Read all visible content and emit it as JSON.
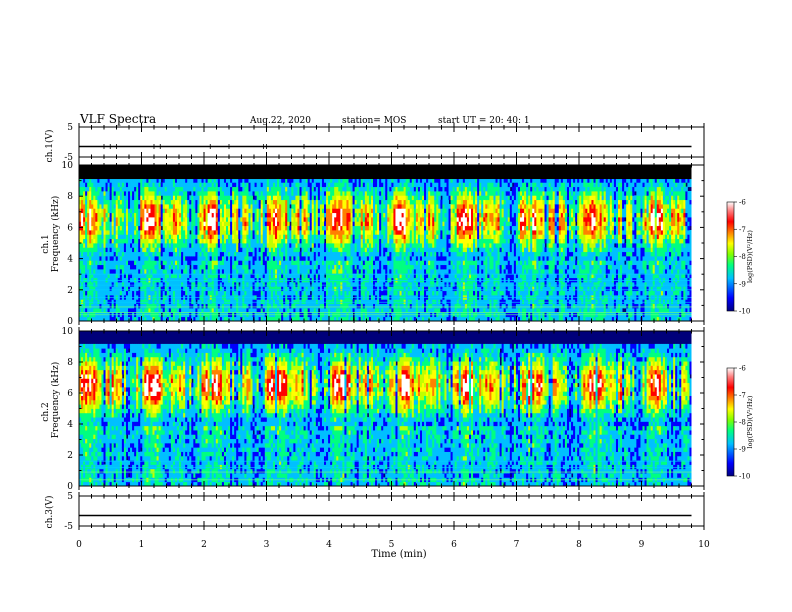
{
  "header": {
    "title": "VLF Spectra",
    "date": "Aug.22, 2020",
    "station": "station= MOS",
    "start_ut": "start  UT =   20: 40: 1"
  },
  "colorbar": {
    "label": "log(PSD)(V²/Hz)",
    "ticks": [
      "-6",
      "-7",
      "-8",
      "-9",
      "-10"
    ]
  },
  "chart_data": [
    {
      "type": "line",
      "name": "ch1-waveform",
      "ylabel": "ch.1(V)",
      "yticks": [
        "5",
        "-5"
      ],
      "ylim": [
        -5,
        5
      ],
      "baseline": -1.5,
      "x_range": [
        0,
        9.8
      ],
      "spikes_at_min": [
        0.4,
        0.5,
        0.6,
        1.2,
        1.3,
        2.1,
        2.4,
        2.95,
        3.0,
        3.6,
        4.2,
        5.1
      ]
    },
    {
      "type": "heatmap",
      "name": "ch1-spectrogram",
      "ylabel": "ch.1\nFrequency  (kHz)",
      "yticks": [
        "0",
        "2",
        "4",
        "6",
        "8",
        "10"
      ],
      "ylim": [
        0,
        10
      ],
      "x_range": [
        0,
        9.8
      ],
      "dominant_band_khz": [
        5,
        8
      ],
      "hum_lines_khz": [
        0.4,
        0.55,
        0.9,
        1.2,
        1.5,
        2.0,
        2.3,
        2.6,
        3.0
      ],
      "colorscale": [
        "#000080",
        "#0000ff",
        "#00c0ff",
        "#00ff80",
        "#c0ff00",
        "#ffff00",
        "#ff8000",
        "#ff0000",
        "#ffffff"
      ]
    },
    {
      "type": "heatmap",
      "name": "ch2-spectrogram",
      "ylabel": "ch.2\nFrequency  (kHz)",
      "yticks": [
        "0",
        "2",
        "4",
        "6",
        "8",
        "10"
      ],
      "ylim": [
        0,
        10
      ],
      "x_range": [
        0,
        9.8
      ],
      "dominant_band_khz": [
        5,
        8
      ],
      "hum_lines_khz": [
        0.4,
        0.9,
        1.2,
        1.6
      ],
      "colorscale": [
        "#000080",
        "#0000ff",
        "#00c0ff",
        "#00ff80",
        "#c0ff00",
        "#ffff00",
        "#ff8000",
        "#ff0000",
        "#ffffff"
      ]
    },
    {
      "type": "line",
      "name": "ch3-waveform",
      "ylabel": "ch.3(V)",
      "yticks": [
        "5",
        "-5"
      ],
      "ylim": [
        -5,
        5
      ],
      "baseline": -1.5,
      "x_range": [
        0,
        9.8
      ]
    }
  ],
  "xaxis": {
    "label": "Time  (min)",
    "ticks": [
      "0",
      "1",
      "2",
      "3",
      "4",
      "5",
      "6",
      "7",
      "8",
      "9",
      "10"
    ],
    "xlim": [
      0,
      10
    ]
  }
}
